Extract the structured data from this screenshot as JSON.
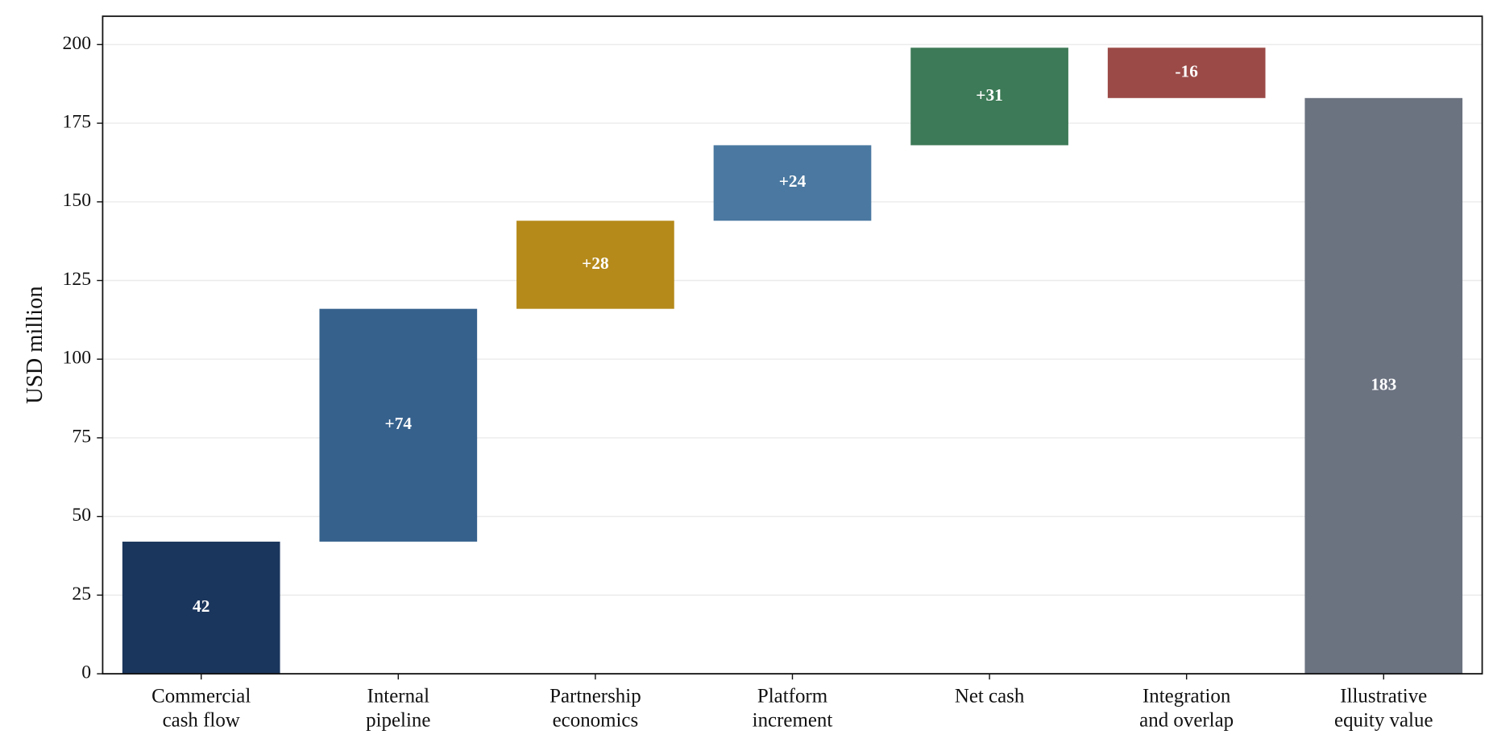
{
  "chart_data": {
    "type": "waterfall",
    "y_label": "USD million",
    "categories": [
      "Commercial\ncash flow",
      "Internal\npipeline",
      "Partnership\neconomics",
      "Platform\nincrement",
      "Net cash",
      "Integration\nand overlap",
      "Illustrative\nequity value"
    ],
    "values": [
      42,
      74,
      28,
      24,
      31,
      -16,
      183
    ],
    "value_labels": [
      "42",
      "+74",
      "+28",
      "+24",
      "+31",
      "-16",
      "183"
    ],
    "colors": [
      "#1b365d",
      "#36618d",
      "#b58a1a",
      "#4a78a0",
      "#3d7a57",
      "#9b4a47",
      "#6b7280"
    ],
    "ylim": [
      0,
      209
    ],
    "yticks": [
      0,
      25,
      50,
      75,
      100,
      125,
      150,
      175,
      200
    ],
    "grid": true
  }
}
